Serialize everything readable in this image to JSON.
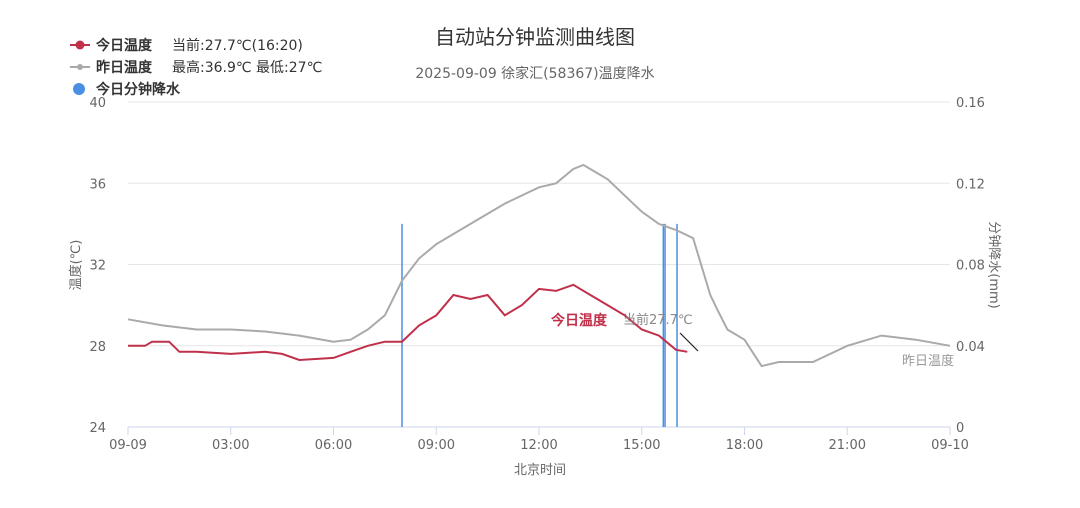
{
  "chart_data": {
    "type": "line",
    "title": "自动站分钟监测曲线图",
    "subtitle": "2025-09-09 徐家汇(58367)温度降水",
    "xlabel": "北京时间",
    "ylabel_left": "温度(℃)",
    "ylabel_right": "分钟降水(mm)",
    "ylim_left": [
      24,
      40
    ],
    "ylim_right": [
      0,
      0.16
    ],
    "yticks_left": [
      "24",
      "28",
      "32",
      "36",
      "40"
    ],
    "yticks_right": [
      "0",
      "0.04",
      "0.08",
      "0.12",
      "0.16"
    ],
    "xlim_hours": [
      0,
      24
    ],
    "xticks": [
      {
        "h": 0,
        "label": "09-09"
      },
      {
        "h": 3,
        "label": "03:00"
      },
      {
        "h": 6,
        "label": "06:00"
      },
      {
        "h": 9,
        "label": "09:00"
      },
      {
        "h": 12,
        "label": "12:00"
      },
      {
        "h": 15,
        "label": "15:00"
      },
      {
        "h": 18,
        "label": "18:00"
      },
      {
        "h": 21,
        "label": "21:00"
      },
      {
        "h": 24,
        "label": "09-10"
      }
    ],
    "grid": true,
    "legend_position": "top-left",
    "series": [
      {
        "name": "今日温度",
        "legend_note": "当前:27.7℃(16:20)",
        "color": "#c0304a",
        "axis": "left",
        "end_label": "今日温度",
        "x": [
          0,
          0.5,
          0.7,
          1.2,
          1.5,
          2,
          3,
          4,
          4.5,
          5,
          6,
          6.5,
          7,
          7.5,
          8,
          8.5,
          9,
          9.5,
          10,
          10.5,
          11,
          11.5,
          12,
          12.5,
          13,
          13.5,
          14,
          14.5,
          15,
          15.5,
          16,
          16.33
        ],
        "y": [
          28.0,
          28.0,
          28.2,
          28.2,
          27.7,
          27.7,
          27.6,
          27.7,
          27.6,
          27.3,
          27.4,
          27.7,
          28.0,
          28.2,
          28.2,
          29.0,
          29.5,
          30.5,
          30.3,
          30.5,
          29.5,
          30.0,
          30.8,
          30.7,
          31.0,
          30.5,
          30.0,
          29.5,
          28.8,
          28.5,
          27.8,
          27.7
        ]
      },
      {
        "name": "昨日温度",
        "legend_note": "最高:36.9℃ 最低:27℃",
        "color": "#aaaaaa",
        "axis": "left",
        "end_label": "昨日温度",
        "x": [
          0,
          1,
          2,
          3,
          4,
          5,
          6,
          6.5,
          7,
          7.5,
          8,
          8.5,
          9,
          10,
          11,
          12,
          12.5,
          13,
          13.3,
          14,
          15,
          15.5,
          16,
          16.5,
          17,
          17.2,
          17.5,
          18,
          18.5,
          19,
          20,
          21,
          22,
          23,
          24
        ],
        "y": [
          29.3,
          29.0,
          28.8,
          28.8,
          28.7,
          28.5,
          28.2,
          28.3,
          28.8,
          29.5,
          31.2,
          32.3,
          33.0,
          34.0,
          35.0,
          35.8,
          36.0,
          36.7,
          36.9,
          36.2,
          34.6,
          34.0,
          33.7,
          33.3,
          30.5,
          29.8,
          28.8,
          28.3,
          27.0,
          27.2,
          27.2,
          28.0,
          28.5,
          28.3,
          28.0
        ]
      },
      {
        "name": "今日分钟降水",
        "color": "#4a90e2",
        "axis": "right",
        "type": "bar",
        "x": [
          8.0,
          15.63,
          15.68,
          16.03
        ],
        "y": [
          0.1,
          0.1,
          0.1,
          0.1
        ]
      }
    ],
    "annotation": "当前27.7℃"
  }
}
